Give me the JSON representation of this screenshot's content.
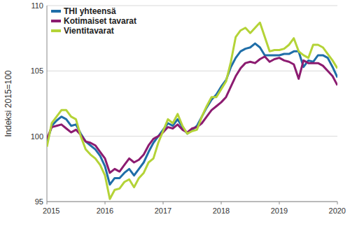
{
  "chart_data": {
    "type": "line",
    "y_label": "Indeksi 2015=100",
    "x": [
      2015,
      2015.0833,
      2015.1667,
      2015.25,
      2015.3333,
      2015.4167,
      2015.5,
      2015.5833,
      2015.6667,
      2015.75,
      2015.8333,
      2015.9167,
      2016,
      2016.0833,
      2016.1667,
      2016.25,
      2016.3333,
      2016.4167,
      2016.5,
      2016.5833,
      2016.6667,
      2016.75,
      2016.8333,
      2016.9167,
      2017,
      2017.0833,
      2017.1667,
      2017.25,
      2017.3333,
      2017.4167,
      2017.5,
      2017.5833,
      2017.6667,
      2017.75,
      2017.8333,
      2017.9167,
      2018,
      2018.0833,
      2018.1667,
      2018.25,
      2018.3333,
      2018.4167,
      2018.5,
      2018.5833,
      2018.6667,
      2018.75,
      2018.8333,
      2018.9167,
      2019,
      2019.0833,
      2019.1667,
      2019.25,
      2019.3333,
      2019.4167,
      2019.5,
      2019.5833,
      2019.6667,
      2019.75,
      2019.8333,
      2019.9167,
      2020
    ],
    "series": [
      {
        "name": "THI yhteensä",
        "color": "#1f6ea8",
        "values": [
          99.5,
          100.8,
          101.2,
          101.5,
          101.3,
          100.8,
          100.9,
          100.2,
          99.6,
          99.3,
          99.0,
          98.5,
          97.7,
          96.3,
          96.8,
          96.8,
          97.2,
          97.5,
          97.0,
          97.5,
          98.0,
          98.8,
          99.5,
          100.0,
          100.5,
          101.0,
          100.8,
          101.3,
          100.7,
          100.2,
          100.5,
          100.8,
          101.5,
          102.2,
          102.8,
          103.2,
          103.8,
          104.3,
          105.3,
          106.0,
          106.5,
          106.7,
          106.8,
          107.1,
          106.8,
          106.2,
          106.2,
          106.2,
          106.2,
          106.3,
          106.3,
          106.5,
          106.5,
          105.3,
          105.8,
          105.7,
          106.2,
          106.2,
          106.0,
          105.3,
          104.5
        ]
      },
      {
        "name": "Kotimaiset tavarat",
        "color": "#8c1b70",
        "values": [
          99.8,
          100.7,
          100.8,
          100.9,
          100.6,
          100.3,
          100.5,
          100.1,
          99.6,
          99.5,
          99.3,
          98.8,
          98.3,
          97.2,
          97.5,
          97.3,
          97.8,
          98.3,
          98.0,
          98.2,
          98.6,
          99.3,
          99.8,
          100.0,
          100.3,
          100.7,
          100.6,
          100.9,
          100.5,
          100.3,
          100.6,
          100.7,
          101.0,
          101.5,
          102.0,
          102.3,
          102.6,
          103.0,
          103.8,
          104.6,
          105.2,
          105.6,
          105.7,
          105.6,
          105.9,
          106.1,
          105.7,
          105.9,
          106.0,
          105.8,
          105.7,
          105.5,
          104.4,
          105.8,
          105.6,
          105.6,
          105.6,
          105.4,
          105.0,
          104.6,
          103.9
        ]
      },
      {
        "name": "Vientitavarat",
        "color": "#b4d337",
        "values": [
          99.2,
          101.0,
          101.5,
          102.0,
          102.0,
          101.5,
          101.3,
          100.0,
          99.0,
          98.6,
          98.3,
          97.8,
          97.0,
          95.2,
          95.9,
          96.0,
          96.5,
          96.7,
          96.1,
          96.8,
          97.2,
          98.0,
          98.3,
          99.5,
          100.4,
          101.3,
          101.0,
          101.7,
          100.8,
          100.2,
          100.4,
          100.5,
          101.5,
          102.3,
          103.0,
          103.0,
          103.6,
          104.2,
          105.7,
          107.6,
          108.1,
          108.3,
          107.9,
          108.3,
          108.7,
          107.6,
          106.5,
          106.6,
          106.6,
          106.7,
          107.0,
          107.5,
          106.5,
          106.2,
          106.0,
          107.0,
          107.0,
          106.8,
          106.3,
          105.8,
          105.2
        ]
      }
    ],
    "xlim": [
      2015,
      2020
    ],
    "xticks": [
      2015,
      2016,
      2017,
      2018,
      2019,
      2020
    ],
    "ylim": [
      95,
      110
    ],
    "yticks": [
      95,
      100,
      105,
      110
    ],
    "grid": true,
    "legend": "upper left"
  }
}
